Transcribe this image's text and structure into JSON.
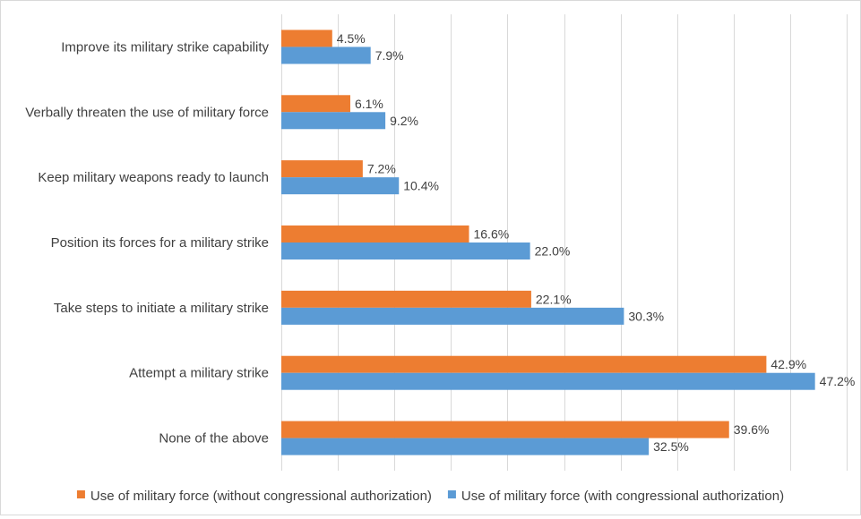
{
  "chart_data": {
    "type": "bar",
    "orientation": "horizontal",
    "categories": [
      "Improve its military strike capability",
      "Verbally threaten the use of military force",
      "Keep military weapons ready to launch",
      "Position its forces for a military strike",
      "Take steps to initiate a military strike",
      "Attempt a military strike",
      "None of the above"
    ],
    "series": [
      {
        "name": "Use of military force (without congressional authorization)",
        "color": "#ed7d31",
        "values": [
          4.5,
          6.1,
          7.2,
          16.6,
          22.1,
          42.9,
          39.6
        ],
        "labels": [
          "4.5%",
          "6.1%",
          "7.2%",
          "16.6%",
          "22.1%",
          "42.9%",
          "39.6%"
        ]
      },
      {
        "name": "Use of military force (with congressional authorization)",
        "color": "#5b9bd5",
        "values": [
          7.9,
          9.2,
          10.4,
          22.0,
          30.3,
          47.2,
          32.5
        ],
        "labels": [
          "7.9%",
          "9.2%",
          "10.4%",
          "22.0%",
          "30.3%",
          "47.2%",
          "32.5%"
        ]
      }
    ],
    "xlim": [
      0,
      50
    ],
    "gridlines": true,
    "legend_position": "bottom",
    "title": "",
    "xlabel": "",
    "ylabel": ""
  }
}
